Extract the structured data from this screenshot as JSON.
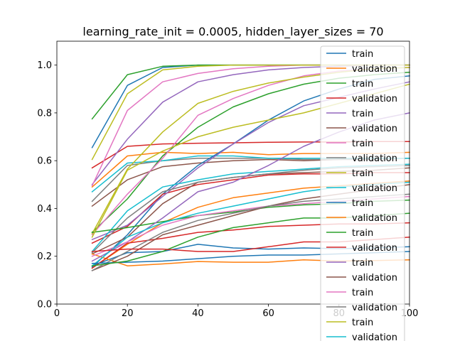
{
  "chart_data": {
    "type": "line",
    "title": "learning_rate_init = 0.0005, hidden_layer_sizes = 70",
    "xlabel": "",
    "ylabel": "",
    "xlim": [
      0,
      100
    ],
    "ylim": [
      0,
      1.1
    ],
    "xticks": [
      "0",
      "20",
      "40",
      "60",
      "80",
      "100"
    ],
    "yticks": [
      "0.0",
      "0.2",
      "0.4",
      "0.6",
      "0.8",
      "1.0"
    ],
    "grid": false,
    "legend_position": "top-right",
    "x": [
      10,
      20,
      30,
      40,
      50,
      60,
      70,
      80,
      90,
      100
    ],
    "series": [
      {
        "name": "train",
        "color": "#1f77b4",
        "values": [
          0.655,
          0.915,
          0.99,
          1.0,
          1.0,
          1.0,
          1.0,
          1.0,
          1.0,
          1.0
        ]
      },
      {
        "name": "validation",
        "color": "#ff7f0e",
        "values": [
          0.49,
          0.62,
          0.635,
          0.63,
          0.635,
          0.625,
          0.63,
          0.63,
          0.63,
          0.635
        ]
      },
      {
        "name": "train",
        "color": "#2ca02c",
        "values": [
          0.775,
          0.96,
          0.995,
          1.0,
          1.0,
          1.0,
          1.0,
          1.0,
          1.0,
          1.0
        ]
      },
      {
        "name": "validation",
        "color": "#d62728",
        "values": [
          0.57,
          0.66,
          0.67,
          0.673,
          0.675,
          0.677,
          0.678,
          0.678,
          0.68,
          0.68
        ]
      },
      {
        "name": "train",
        "color": "#9467bd",
        "values": [
          0.5,
          0.69,
          0.845,
          0.93,
          0.96,
          0.98,
          0.99,
          0.995,
          1.0,
          1.0
        ]
      },
      {
        "name": "validation",
        "color": "#8c564b",
        "values": [
          0.41,
          0.52,
          0.575,
          0.59,
          0.6,
          0.605,
          0.6,
          0.605,
          0.61,
          0.61
        ]
      },
      {
        "name": "train",
        "color": "#e377c2",
        "values": [
          0.495,
          0.81,
          0.93,
          0.965,
          0.985,
          0.995,
          1.0,
          1.0,
          1.0,
          1.0
        ]
      },
      {
        "name": "validation",
        "color": "#7f7f7f",
        "values": [
          0.43,
          0.58,
          0.6,
          0.61,
          0.61,
          0.61,
          0.605,
          0.605,
          0.605,
          0.61
        ]
      },
      {
        "name": "train",
        "color": "#bcbd22",
        "values": [
          0.605,
          0.88,
          0.98,
          0.995,
          1.0,
          1.0,
          1.0,
          1.0,
          1.0,
          1.0
        ]
      },
      {
        "name": "validation",
        "color": "#17becf",
        "values": [
          0.47,
          0.59,
          0.6,
          0.62,
          0.62,
          0.61,
          0.61,
          0.61,
          0.61,
          0.61
        ]
      },
      {
        "name": "train",
        "color": "#1f77b4",
        "values": [
          0.155,
          0.29,
          0.46,
          0.58,
          0.67,
          0.77,
          0.85,
          0.9,
          0.94,
          0.955
        ]
      },
      {
        "name": "validation",
        "color": "#ff7f0e",
        "values": [
          0.15,
          0.25,
          0.34,
          0.405,
          0.445,
          0.465,
          0.485,
          0.495,
          0.505,
          0.515
        ]
      },
      {
        "name": "train",
        "color": "#2ca02c",
        "values": [
          0.3,
          0.44,
          0.62,
          0.74,
          0.825,
          0.88,
          0.92,
          0.945,
          0.96,
          0.97
        ]
      },
      {
        "name": "validation",
        "color": "#d62728",
        "values": [
          0.255,
          0.325,
          0.46,
          0.5,
          0.52,
          0.54,
          0.545,
          0.545,
          0.55,
          0.55
        ]
      },
      {
        "name": "train",
        "color": "#9467bd",
        "values": [
          0.27,
          0.33,
          0.45,
          0.57,
          0.67,
          0.76,
          0.83,
          0.865,
          0.9,
          0.93
        ]
      },
      {
        "name": "validation",
        "color": "#8c564b",
        "values": [
          0.21,
          0.28,
          0.42,
          0.51,
          0.53,
          0.545,
          0.55,
          0.555,
          0.56,
          0.57
        ]
      },
      {
        "name": "train",
        "color": "#e377c2",
        "values": [
          0.29,
          0.46,
          0.61,
          0.79,
          0.86,
          0.915,
          0.955,
          0.975,
          0.985,
          0.99
        ]
      },
      {
        "name": "validation",
        "color": "#7f7f7f",
        "values": [
          0.215,
          0.36,
          0.47,
          0.51,
          0.53,
          0.545,
          0.56,
          0.57,
          0.575,
          0.58
        ]
      },
      {
        "name": "train",
        "color": "#bcbd22",
        "values": [
          0.295,
          0.565,
          0.72,
          0.84,
          0.89,
          0.925,
          0.95,
          0.97,
          0.985,
          0.99
        ]
      },
      {
        "name": "validation",
        "color": "#17becf",
        "values": [
          0.22,
          0.39,
          0.49,
          0.52,
          0.545,
          0.555,
          0.565,
          0.575,
          0.58,
          0.585
        ]
      },
      {
        "name": "",
        "color": "#1f77b4",
        "values": [
          0.16,
          0.215,
          0.22,
          0.25,
          0.235,
          0.23,
          0.235,
          0.232,
          0.235,
          0.24
        ]
      },
      {
        "name": "",
        "color": "#ff7f0e",
        "values": [
          0.21,
          0.16,
          0.168,
          0.178,
          0.175,
          0.175,
          0.185,
          0.18,
          0.182,
          0.185
        ]
      },
      {
        "name": "",
        "color": "#2ca02c",
        "values": [
          0.3,
          0.32,
          0.345,
          0.37,
          0.385,
          0.405,
          0.415,
          0.42,
          0.43,
          0.435
        ]
      },
      {
        "name": "",
        "color": "#d62728",
        "values": [
          0.15,
          0.255,
          0.275,
          0.3,
          0.31,
          0.325,
          0.33,
          0.335,
          0.335,
          0.34
        ]
      },
      {
        "name": "",
        "color": "#9467bd",
        "values": [
          0.18,
          0.26,
          0.36,
          0.47,
          0.51,
          0.58,
          0.66,
          0.72,
          0.77,
          0.8
        ]
      },
      {
        "name": "",
        "color": "#8c564b",
        "values": [
          0.14,
          0.2,
          0.29,
          0.33,
          0.37,
          0.41,
          0.44,
          0.46,
          0.48,
          0.5
        ]
      },
      {
        "name": "",
        "color": "#e377c2",
        "values": [
          0.2,
          0.26,
          0.33,
          0.37,
          0.39,
          0.41,
          0.42,
          0.43,
          0.44,
          0.45
        ]
      },
      {
        "name": "",
        "color": "#7f7f7f",
        "values": [
          0.14,
          0.22,
          0.3,
          0.35,
          0.38,
          0.41,
          0.43,
          0.44,
          0.45,
          0.46
        ]
      },
      {
        "name": "",
        "color": "#bcbd22",
        "values": [
          0.28,
          0.56,
          0.64,
          0.7,
          0.74,
          0.77,
          0.8,
          0.84,
          0.88,
          0.92
        ]
      },
      {
        "name": "",
        "color": "#17becf",
        "values": [
          0.16,
          0.28,
          0.34,
          0.38,
          0.41,
          0.44,
          0.47,
          0.49,
          0.5,
          0.51
        ]
      },
      {
        "name": "",
        "color": "#1f77b4",
        "values": [
          0.17,
          0.175,
          0.18,
          0.19,
          0.2,
          0.205,
          0.205,
          0.21,
          0.215,
          0.22
        ]
      },
      {
        "name": "",
        "color": "#2ca02c",
        "values": [
          0.16,
          0.18,
          0.22,
          0.28,
          0.32,
          0.34,
          0.36,
          0.36,
          0.37,
          0.38
        ]
      },
      {
        "name": "",
        "color": "#d62728",
        "values": [
          0.22,
          0.23,
          0.23,
          0.22,
          0.22,
          0.24,
          0.26,
          0.26,
          0.27,
          0.28
        ]
      }
    ]
  }
}
